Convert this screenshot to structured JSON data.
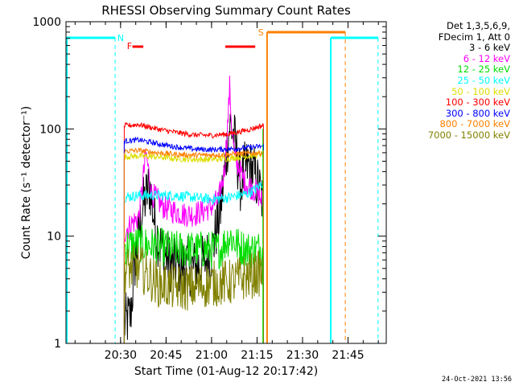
{
  "chart_data": {
    "type": "line",
    "title": "RHESSI Observing Summary Count Rates",
    "xlabel": "Start Time (01-Aug-12 20:17:42)",
    "ylabel": "Count Rate (s⁻¹ detector⁻¹)",
    "xlim_minutes": [
      20.2,
      21.96
    ],
    "ylim": [
      1,
      1000
    ],
    "y_scale": "log",
    "x_tick_labels": [
      "20:30",
      "20:45",
      "21:00",
      "21:15",
      "21:30",
      "21:45"
    ],
    "x_ticks_hours": [
      20.5,
      20.75,
      21.0,
      21.25,
      21.5,
      21.75
    ],
    "y_tick_labels": [
      "1",
      "10",
      "100",
      "1000"
    ],
    "y_ticks": [
      1,
      10,
      100,
      1000
    ],
    "legend_header": [
      "Det 1,3,5,6,9,",
      "FDecim 1, Att 0"
    ],
    "series": [
      {
        "name": "3 - 6 keV",
        "color": "#000000",
        "x": [
          20.52,
          20.555,
          20.58,
          20.62,
          20.66,
          20.69,
          20.72,
          20.76,
          20.8,
          20.85,
          20.9,
          20.95,
          21.0,
          21.05,
          21.08,
          21.1,
          21.12,
          21.14,
          21.16,
          21.18,
          21.2,
          21.23,
          21.26,
          21.285
        ],
        "y": [
          1.5,
          1.8,
          6,
          18,
          30,
          12,
          8,
          6,
          5,
          5.5,
          5,
          5.5,
          7,
          18,
          55,
          110,
          90,
          55,
          30,
          40,
          45,
          40,
          28,
          20
        ]
      },
      {
        "name": "6 - 12 keV",
        "color": "#ff00ff",
        "x": [
          20.52,
          20.56,
          20.6,
          20.64,
          20.67,
          20.7,
          20.73,
          20.76,
          20.8,
          20.85,
          20.9,
          20.95,
          21.0,
          21.04,
          21.07,
          21.09,
          21.1,
          21.11,
          21.13,
          21.15,
          21.17,
          21.2,
          21.23,
          21.26,
          21.285
        ],
        "y": [
          11,
          13,
          15,
          60,
          25,
          22,
          19,
          18,
          17,
          16,
          16,
          17,
          19,
          22,
          40,
          120,
          250,
          110,
          50,
          45,
          35,
          30,
          28,
          24,
          20
        ]
      },
      {
        "name": "12 - 25 keV",
        "color": "#00dd00",
        "x": [
          20.52,
          20.6,
          20.7,
          20.8,
          20.9,
          21.0,
          21.05,
          21.08,
          21.1,
          21.15,
          21.2,
          21.25,
          21.285
        ],
        "y": [
          8,
          8.5,
          8,
          7.5,
          7.5,
          7.5,
          7.5,
          9,
          10,
          8,
          7.5,
          7.5,
          8
        ]
      },
      {
        "name": "25 - 50 keV",
        "color": "#00ffff",
        "x": [
          20.52,
          20.6,
          20.7,
          20.8,
          20.9,
          21.0,
          21.1,
          21.2,
          21.25,
          21.285
        ],
        "y": [
          23,
          24,
          24,
          24,
          23,
          22,
          23,
          25,
          28,
          32
        ]
      },
      {
        "name": "50 - 100 keV",
        "color": "#dddd00",
        "x": [
          20.52,
          20.6,
          20.7,
          20.8,
          20.9,
          21.0,
          21.1,
          21.2,
          21.285
        ],
        "y": [
          55,
          56,
          55,
          53,
          52,
          52,
          53,
          56,
          58
        ]
      },
      {
        "name": "100 - 300 keV",
        "color": "#ff0000",
        "x": [
          20.52,
          20.6,
          20.7,
          20.8,
          20.9,
          21.0,
          21.1,
          21.2,
          21.285
        ],
        "y": [
          107,
          110,
          100,
          93,
          88,
          87,
          90,
          98,
          108
        ]
      },
      {
        "name": "300 - 800 keV",
        "color": "#0000ff",
        "x": [
          20.52,
          20.6,
          20.7,
          20.8,
          20.9,
          21.0,
          21.1,
          21.2,
          21.285
        ],
        "y": [
          77,
          79,
          73,
          68,
          65,
          64,
          65,
          67,
          69
        ]
      },
      {
        "name": "800 - 7000 keV",
        "color": "#ff8000",
        "x": [
          20.52,
          20.6,
          20.7,
          20.8,
          20.9,
          21.0,
          21.1,
          21.2,
          21.285
        ],
        "y": [
          62,
          63,
          60,
          58,
          57,
          57,
          58,
          59,
          60
        ]
      },
      {
        "name": "7000 - 15000 keV",
        "color": "#808000",
        "x": [
          20.52,
          20.6,
          20.7,
          20.8,
          20.9,
          21.0,
          21.1,
          21.2,
          21.285
        ],
        "y": [
          4.8,
          5.2,
          3.6,
          3.3,
          3.3,
          3.6,
          3.7,
          4.2,
          4.6
        ]
      }
    ],
    "markers": [
      {
        "label": "N",
        "color": "#00ffff"
      },
      {
        "label": "F",
        "color": "#ff0000"
      },
      {
        "label": "S",
        "color": "#ff8000"
      }
    ],
    "footer_date": "24-Oct-2021 13:56"
  }
}
